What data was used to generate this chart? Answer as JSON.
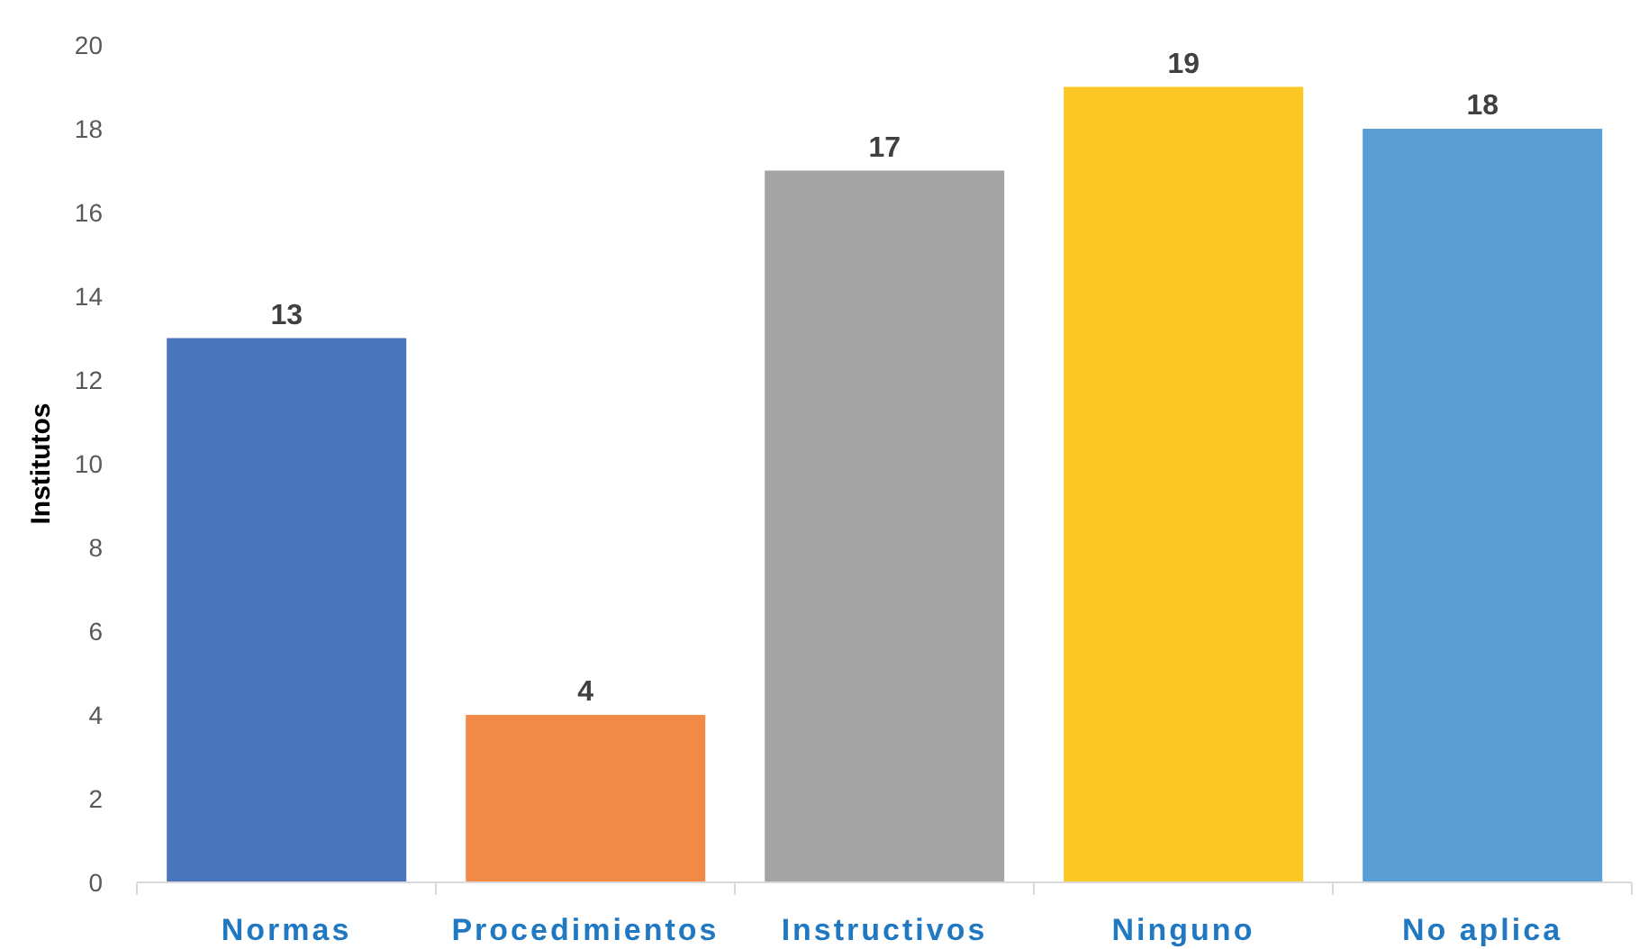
{
  "chart_data": {
    "type": "bar",
    "ylabel": "Institutos",
    "categories": [
      "Normas",
      "Procedimientos",
      "Instructivos",
      "Ninguno",
      "No aplica"
    ],
    "values": [
      13,
      4,
      17,
      19,
      18
    ],
    "colors": [
      "#4a76bd",
      "#f28a47",
      "#a3a4a6",
      "#fcc723",
      "#5a9ed6"
    ],
    "ylim": [
      0,
      20
    ],
    "yticks": [
      0,
      2,
      4,
      6,
      8,
      10,
      12,
      14,
      16,
      18,
      20
    ],
    "data_labels": true
  }
}
